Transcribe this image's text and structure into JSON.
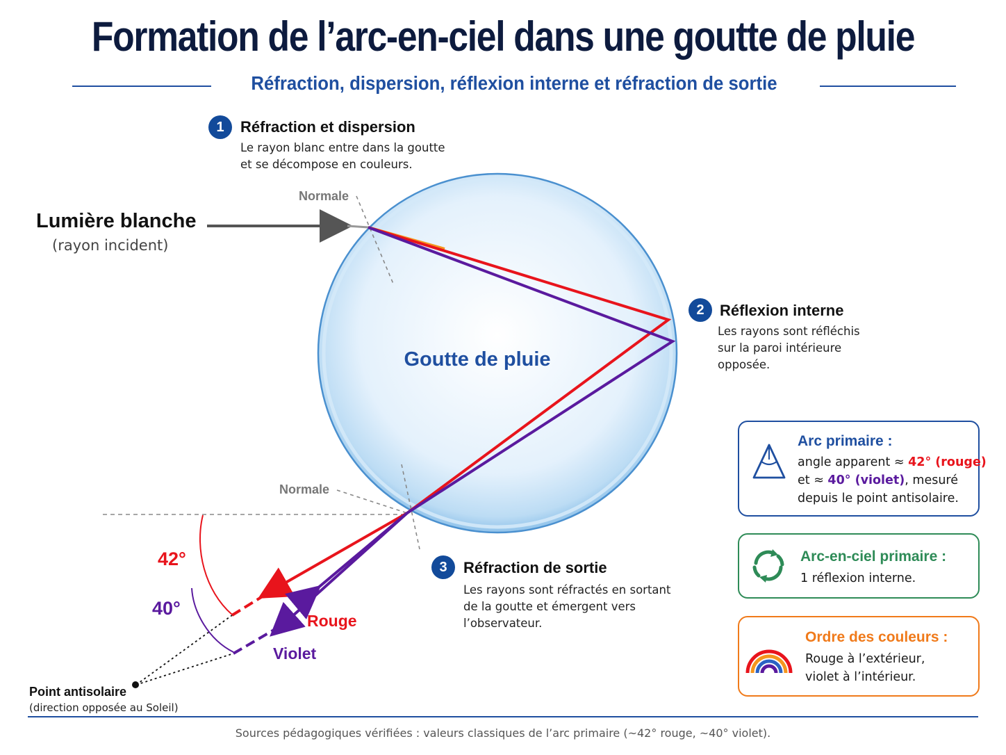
{
  "title": "Formation de l’arc-en-ciel dans une goutte de pluie",
  "subtitle": "Réfraction, dispersion, réflexion interne et réfraction de sortie",
  "drop_label": "Goutte de pluie",
  "incident": {
    "label": "Lumière blanche",
    "sublabel": "(rayon incident)"
  },
  "normal_label_top": "Normale",
  "normal_label_bottom": "Normale",
  "steps": [
    {
      "number": "1",
      "title": "Réfraction et dispersion",
      "lines": [
        "Le rayon blanc entre dans la goutte",
        "et se décompose en couleurs."
      ]
    },
    {
      "number": "2",
      "title": "Réflexion interne",
      "lines": [
        "Les rayons sont réfléchis",
        "sur la paroi intérieure",
        "opposée."
      ]
    },
    {
      "number": "3",
      "title": "Réfraction de sortie",
      "lines": [
        "Les rayons sont réfractés en sortant",
        "de la goutte et émergent vers",
        "l’observateur."
      ]
    }
  ],
  "angles": {
    "red": "42°",
    "violet": "40°"
  },
  "ray_labels": {
    "red": "Rouge",
    "violet": "Violet"
  },
  "antisolar": {
    "label": "Point antisolaire",
    "sublabel": "(direction opposée au Soleil)"
  },
  "boxes": {
    "primary_arc": {
      "title": "Arc primaire :",
      "line1_prefix": "angle apparent ≈ ",
      "line1_red": "42° (rouge)",
      "line2_prefix": "et ≈ ",
      "line2_violet": "40° (violet)",
      "line2_suffix": ", mesuré",
      "line3": "depuis le point antisolaire.",
      "icon": "angle-triangle-icon"
    },
    "primary_rainbow": {
      "title": "Arc-en-ciel primaire :",
      "line1": "1 réflexion interne.",
      "icon": "cycle-arrows-icon"
    },
    "color_order": {
      "title": "Ordre des couleurs :",
      "line1": "Rouge à l’extérieur,",
      "line2": "violet à l’intérieur.",
      "icon": "rainbow-icon"
    }
  },
  "footer": "Sources pédagogiques vérifiées : valeurs classiques de l’arc primaire (~42° rouge, ~40° violet).",
  "colors": {
    "navy": "#0d1b3e",
    "blue": "#1f4fa0",
    "red": "#e8141c",
    "violet": "#5a1a9e",
    "green": "#2e8b57",
    "orange": "#f07a1a"
  }
}
